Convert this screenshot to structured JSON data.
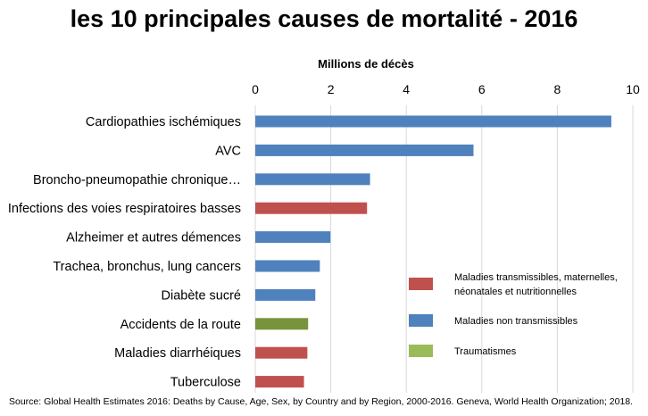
{
  "title": "les 10 principales causes de mortalité - 2016",
  "source": "Source: Global Health Estimates 2016: Deaths by Cause, Age, Sex, by Country and by Region, 2000-2016. Geneva, World Health Organization; 2018.",
  "chart_data": {
    "type": "bar",
    "orientation": "horizontal",
    "axis_title": "Millions de décès",
    "xlim": [
      0,
      10
    ],
    "ticks": [
      0,
      2,
      4,
      6,
      8,
      10
    ],
    "grid": true,
    "categories": [
      "Cardiopathies ischémiques",
      "AVC",
      "Broncho-pneumopathie chronique…",
      "Infections des voies respiratoires basses",
      "Alzheimer et autres démences",
      "Trachea, bronchus, lung cancers",
      "Diabète sucré",
      "Accidents de la route",
      "Maladies diarrhéiques",
      "Tuberculose"
    ],
    "values": [
      9.43,
      5.78,
      3.04,
      2.96,
      1.99,
      1.71,
      1.59,
      1.4,
      1.38,
      1.29
    ],
    "groups": [
      "ncd",
      "ncd",
      "ncd",
      "comm",
      "ncd",
      "ncd",
      "ncd",
      "inj",
      "comm",
      "comm"
    ],
    "legend": [
      {
        "key": "comm",
        "label_lines": [
          "Maladies transmissibles, maternelles,",
          "néonatales et nutritionnelles"
        ],
        "color": "#c0504d"
      },
      {
        "key": "ncd",
        "label_lines": [
          "Maladies non transmissibles"
        ],
        "color": "#4f81bd"
      },
      {
        "key": "inj",
        "label_lines": [
          "Traumatismes"
        ],
        "color": "#9bbb59"
      }
    ],
    "bar_colors": {
      "comm": "#c0504d",
      "ncd": "#4f81bd",
      "inj": "#77933c"
    },
    "legend_placement": "lower-right"
  }
}
